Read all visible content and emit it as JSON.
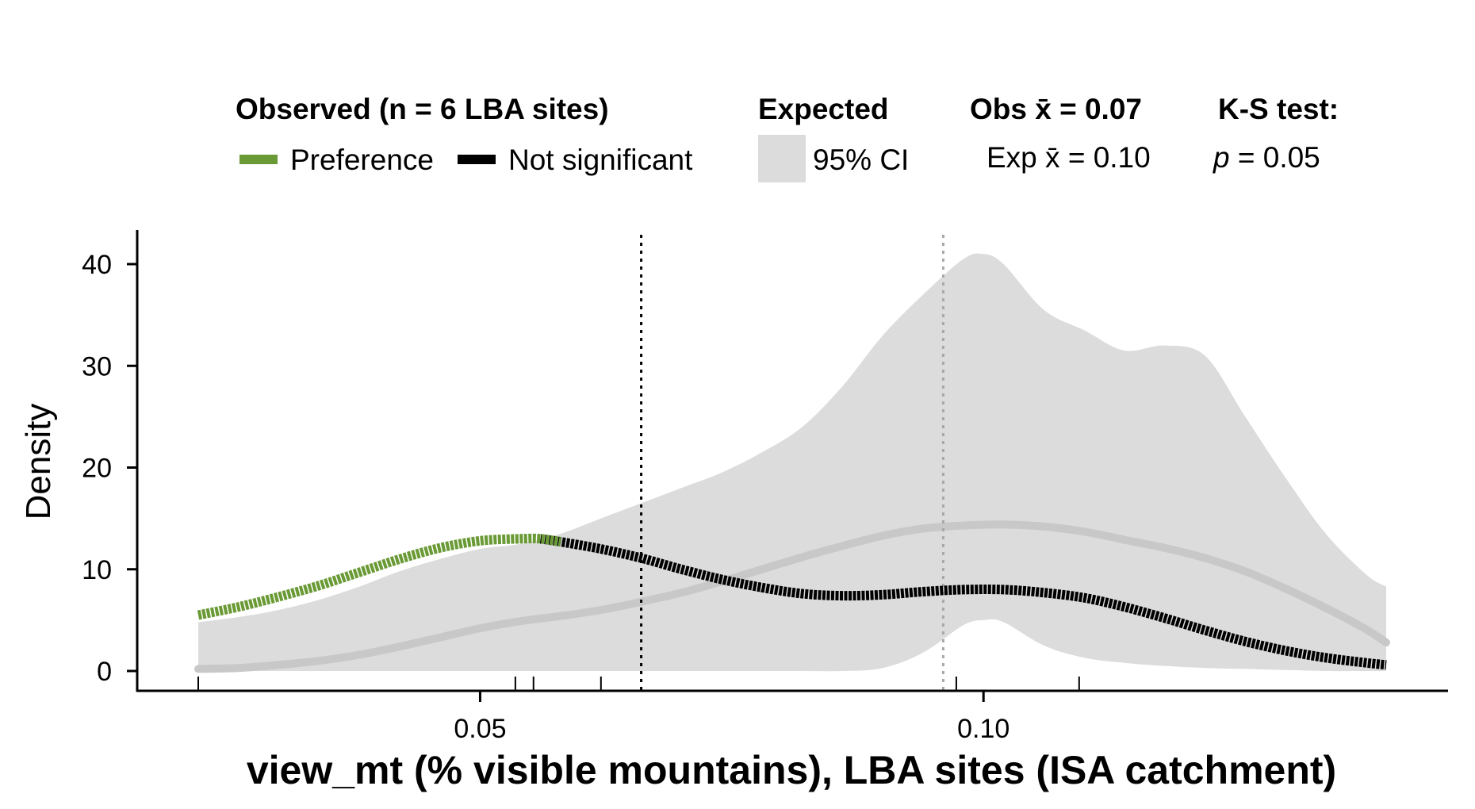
{
  "chart_data": {
    "type": "line",
    "title": "",
    "xlabel": "view_mt (% visible mountains), LBA sites (ISA catchment)",
    "ylabel": "Density",
    "xlim": [
      0.022,
      0.14
    ],
    "ylim": [
      0,
      43
    ],
    "x_ticks": [
      0.05,
      0.1
    ],
    "x_tick_labels": [
      "0.05",
      "0.10"
    ],
    "y_ticks": [
      0,
      10,
      20,
      30,
      40
    ],
    "y_tick_labels": [
      "0",
      "10",
      "20",
      "30",
      "40"
    ],
    "grid": false,
    "legend_position": "top",
    "legend": {
      "observed_title": "Observed (n = 6 LBA sites)",
      "preference_label": "Preference",
      "not_significant_label": "Not significant",
      "expected_title": "Expected",
      "ci_label": "95% CI",
      "obs_mean_label": "Obs x̄ = 0.07",
      "exp_mean_label": "Exp x̄ = 0.10",
      "ks_title": "K-S test:",
      "ks_p_symbol": "p",
      "ks_p_value": " = 0.05"
    },
    "colors": {
      "preference": "#6a9a35",
      "not_significant": "#000000",
      "expected_band": "#dcdcdc",
      "expected_line": "#c8c8c8",
      "obs_mean_line": "#000000",
      "exp_mean_line": "#a8a8a8"
    },
    "observed_mean": 0.066,
    "expected_mean": 0.096,
    "site_values": [
      0.022,
      0.0535,
      0.0553,
      0.062,
      0.0973,
      0.1095
    ],
    "preference_range": [
      0.022,
      0.0585
    ],
    "observed": {
      "x": [
        0.022,
        0.026,
        0.03,
        0.034,
        0.038,
        0.042,
        0.046,
        0.05,
        0.054,
        0.056,
        0.058,
        0.062,
        0.066,
        0.07,
        0.074,
        0.078,
        0.082,
        0.086,
        0.09,
        0.094,
        0.098,
        0.102,
        0.106,
        0.11,
        0.114,
        0.118,
        0.122,
        0.126,
        0.13,
        0.134,
        0.138,
        0.14
      ],
      "y": [
        5.5,
        6.3,
        7.3,
        8.4,
        9.7,
        11.0,
        12.1,
        12.8,
        13.0,
        13.0,
        12.7,
        12.0,
        11.1,
        10.0,
        9.0,
        8.2,
        7.6,
        7.4,
        7.5,
        7.8,
        8.0,
        8.0,
        7.7,
        7.2,
        6.3,
        5.2,
        4.0,
        2.9,
        2.0,
        1.3,
        0.8,
        0.6
      ]
    },
    "expected_mean_curve": {
      "x": [
        0.022,
        0.026,
        0.03,
        0.034,
        0.038,
        0.042,
        0.046,
        0.05,
        0.054,
        0.058,
        0.062,
        0.066,
        0.07,
        0.074,
        0.078,
        0.082,
        0.086,
        0.09,
        0.094,
        0.098,
        0.102,
        0.106,
        0.11,
        0.114,
        0.118,
        0.122,
        0.126,
        0.13,
        0.134,
        0.138,
        0.14
      ],
      "y": [
        0.2,
        0.3,
        0.6,
        1.0,
        1.6,
        2.4,
        3.3,
        4.2,
        4.9,
        5.4,
        6.0,
        6.8,
        7.7,
        8.8,
        10.0,
        11.2,
        12.3,
        13.3,
        14.0,
        14.3,
        14.4,
        14.2,
        13.7,
        12.9,
        12.1,
        11.1,
        9.8,
        8.1,
        6.2,
        4.1,
        2.8
      ]
    },
    "expected_ci": {
      "x": [
        0.022,
        0.026,
        0.03,
        0.034,
        0.038,
        0.042,
        0.046,
        0.05,
        0.054,
        0.058,
        0.062,
        0.066,
        0.07,
        0.074,
        0.078,
        0.082,
        0.086,
        0.09,
        0.094,
        0.098,
        0.1,
        0.102,
        0.106,
        0.11,
        0.114,
        0.118,
        0.122,
        0.126,
        0.13,
        0.134,
        0.138,
        0.14
      ],
      "upper": [
        4.8,
        5.3,
        6.0,
        7.0,
        8.3,
        9.8,
        11.0,
        12.0,
        12.5,
        13.5,
        15.0,
        16.5,
        18.0,
        19.5,
        21.5,
        24.0,
        28.0,
        33.0,
        37.0,
        40.5,
        41.0,
        40.0,
        35.5,
        33.5,
        31.5,
        32.0,
        31.0,
        25.0,
        19.0,
        13.5,
        9.5,
        8.3
      ],
      "lower": [
        0.0,
        0.0,
        0.0,
        0.0,
        0.0,
        0.0,
        0.0,
        0.0,
        0.0,
        0.0,
        0.0,
        0.0,
        0.0,
        0.0,
        0.0,
        0.0,
        0.0,
        0.3,
        1.8,
        4.5,
        5.0,
        4.8,
        2.5,
        1.3,
        0.8,
        0.5,
        0.3,
        0.2,
        0.1,
        0.0,
        0.0,
        0.0
      ]
    }
  }
}
